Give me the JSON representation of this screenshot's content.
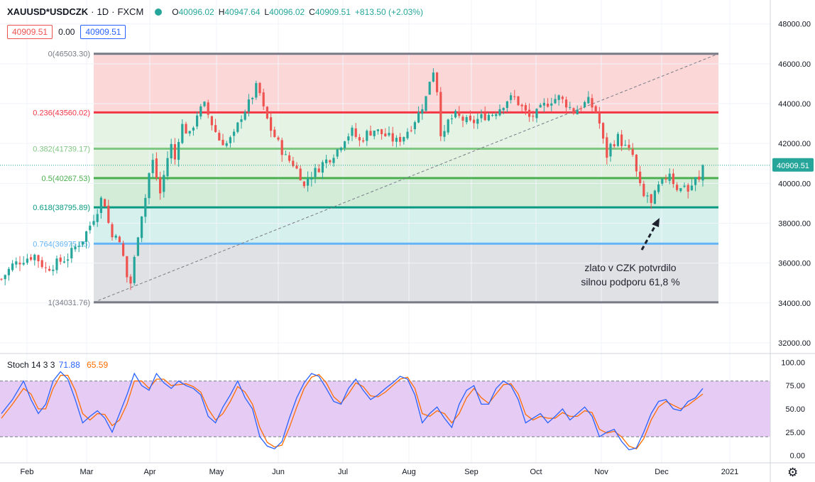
{
  "header": {
    "symbol": "XAUUSD*USDCZK",
    "interval": "1D",
    "source": "FXCM",
    "open_label": "O",
    "open": "40096.02",
    "high_label": "H",
    "high": "40947.64",
    "low_label": "L",
    "low": "40096.02",
    "close_label": "C",
    "close": "40909.51",
    "change": "+813.50 (+2.03%)"
  },
  "trade": {
    "sell": "40909.51",
    "spread": "0.00",
    "buy": "40909.51"
  },
  "last_price": "40909.51",
  "colors": {
    "up": "#26a69a",
    "down": "#ef5350",
    "stoch_k": "#2962ff",
    "stoch_d": "#ff6d00",
    "fib_0_236": "#f23645",
    "fib_0_382": "#81c784",
    "fib_0_5": "#4caf50",
    "fib_0_618": "#089981",
    "fib_0_764": "#64b5f6",
    "fib_1": "#787b86"
  },
  "annotation": {
    "line1": "zlato v CZK potvrdilo",
    "line2": "silnou podporu 61,8 %"
  },
  "stoch": {
    "label": "Stoch",
    "params": "14 3 3",
    "k_value": "71.88",
    "d_value": "65.59"
  },
  "chart_data": {
    "type": "candlestick",
    "price_axis": {
      "range": [
        31500,
        49200
      ],
      "ticks": [
        "48000.00",
        "46000.00",
        "44000.00",
        "42000.00",
        "40000.00",
        "38000.00",
        "36000.00",
        "34000.00",
        "32000.00"
      ]
    },
    "time_axis": {
      "labels": [
        "Feb",
        "Mar",
        "Apr",
        "May",
        "Jun",
        "Jul",
        "Aug",
        "Sep",
        "Oct",
        "Nov",
        "Dec",
        "2021"
      ]
    },
    "fib_levels": [
      {
        "ratio": "0",
        "price": 46503.3,
        "label": "0(46503.30)"
      },
      {
        "ratio": "0.236",
        "price": 43560.02,
        "label": "0.236(43560.02)"
      },
      {
        "ratio": "0.382",
        "price": 41739.17,
        "label": "0.382(41739.17)"
      },
      {
        "ratio": "0.5",
        "price": 40267.53,
        "label": "0.5(40267.53)"
      },
      {
        "ratio": "0.618",
        "price": 38795.89,
        "label": "0.618(38795.89)"
      },
      {
        "ratio": "0.764",
        "price": 36975.05,
        "label": "0.764(36975.05)"
      },
      {
        "ratio": "1",
        "price": 34031.76,
        "label": "1(34031.76)"
      }
    ],
    "price_path": [
      [
        0,
        35200
      ],
      [
        3,
        35900
      ],
      [
        6,
        36200
      ],
      [
        9,
        36400
      ],
      [
        12,
        35700
      ],
      [
        15,
        36000
      ],
      [
        18,
        36300
      ],
      [
        20,
        36800
      ],
      [
        22,
        37200
      ],
      [
        24,
        37900
      ],
      [
        26,
        38700
      ],
      [
        27,
        39200
      ],
      [
        28,
        39000
      ],
      [
        29,
        38000
      ],
      [
        30,
        37300
      ],
      [
        31,
        37600
      ],
      [
        32,
        36900
      ],
      [
        33,
        36300
      ],
      [
        34,
        35300
      ],
      [
        35,
        35000
      ],
      [
        36,
        36200
      ],
      [
        37,
        37500
      ],
      [
        38,
        38500
      ],
      [
        39,
        39300
      ],
      [
        40,
        40500
      ],
      [
        41,
        41100
      ],
      [
        42,
        40300
      ],
      [
        43,
        39500
      ],
      [
        44,
        40400
      ],
      [
        45,
        41300
      ],
      [
        46,
        41900
      ],
      [
        47,
        41200
      ],
      [
        48,
        42300
      ],
      [
        49,
        42900
      ],
      [
        51,
        42400
      ],
      [
        53,
        43500
      ],
      [
        55,
        43900
      ],
      [
        57,
        43000
      ],
      [
        59,
        42200
      ],
      [
        61,
        42000
      ],
      [
        63,
        42400
      ],
      [
        65,
        43400
      ],
      [
        67,
        44000
      ],
      [
        69,
        44800
      ],
      [
        70,
        44500
      ],
      [
        71,
        43700
      ],
      [
        72,
        43200
      ],
      [
        73,
        42700
      ],
      [
        75,
        42000
      ],
      [
        77,
        41300
      ],
      [
        79,
        41000
      ],
      [
        81,
        40400
      ],
      [
        82,
        39800
      ],
      [
        83,
        40300
      ],
      [
        85,
        40600
      ],
      [
        87,
        41000
      ],
      [
        89,
        41300
      ],
      [
        91,
        41700
      ],
      [
        93,
        42300
      ],
      [
        95,
        42600
      ],
      [
        97,
        42100
      ],
      [
        99,
        42500
      ],
      [
        101,
        42700
      ],
      [
        103,
        42500
      ],
      [
        105,
        42300
      ],
      [
        107,
        42100
      ],
      [
        109,
        42400
      ],
      [
        111,
        42900
      ],
      [
        113,
        43500
      ],
      [
        115,
        44300
      ],
      [
        116,
        45200
      ],
      [
        117,
        45700
      ],
      [
        118,
        44700
      ],
      [
        119,
        42600
      ],
      [
        120,
        42400
      ],
      [
        121,
        43100
      ],
      [
        123,
        43400
      ],
      [
        125,
        43200
      ],
      [
        127,
        43000
      ],
      [
        129,
        43200
      ],
      [
        131,
        43400
      ],
      [
        133,
        43500
      ],
      [
        135,
        43800
      ],
      [
        137,
        44200
      ],
      [
        139,
        44300
      ],
      [
        141,
        43800
      ],
      [
        143,
        43300
      ],
      [
        145,
        43500
      ],
      [
        147,
        43900
      ],
      [
        149,
        44200
      ],
      [
        151,
        44300
      ],
      [
        153,
        44000
      ],
      [
        155,
        43600
      ],
      [
        157,
        43900
      ],
      [
        159,
        44100
      ],
      [
        161,
        43600
      ],
      [
        162,
        43000
      ],
      [
        163,
        42100
      ],
      [
        164,
        41400
      ],
      [
        165,
        41900
      ],
      [
        167,
        42300
      ],
      [
        169,
        41800
      ],
      [
        171,
        41400
      ],
      [
        172,
        40500
      ],
      [
        173,
        39800
      ],
      [
        174,
        39300
      ],
      [
        175,
        39400
      ],
      [
        176,
        38900
      ],
      [
        177,
        39400
      ],
      [
        178,
        39800
      ],
      [
        179,
        40000
      ],
      [
        180,
        40300
      ],
      [
        181,
        40600
      ],
      [
        182,
        40100
      ],
      [
        183,
        39800
      ],
      [
        184,
        39700
      ],
      [
        185,
        40000
      ],
      [
        186,
        39600
      ],
      [
        187,
        39900
      ],
      [
        188,
        40200
      ],
      [
        189,
        40100
      ],
      [
        190,
        40909
      ]
    ],
    "stoch_k": [
      [
        0,
        45
      ],
      [
        3,
        60
      ],
      [
        6,
        80
      ],
      [
        8,
        60
      ],
      [
        10,
        45
      ],
      [
        12,
        55
      ],
      [
        14,
        80
      ],
      [
        16,
        90
      ],
      [
        18,
        82
      ],
      [
        20,
        60
      ],
      [
        22,
        35
      ],
      [
        24,
        42
      ],
      [
        26,
        48
      ],
      [
        28,
        40
      ],
      [
        30,
        25
      ],
      [
        32,
        45
      ],
      [
        34,
        65
      ],
      [
        36,
        88
      ],
      [
        38,
        75
      ],
      [
        40,
        70
      ],
      [
        42,
        88
      ],
      [
        44,
        78
      ],
      [
        46,
        72
      ],
      [
        48,
        80
      ],
      [
        50,
        75
      ],
      [
        52,
        72
      ],
      [
        54,
        65
      ],
      [
        56,
        42
      ],
      [
        58,
        35
      ],
      [
        60,
        52
      ],
      [
        62,
        65
      ],
      [
        64,
        80
      ],
      [
        66,
        62
      ],
      [
        68,
        50
      ],
      [
        70,
        20
      ],
      [
        72,
        10
      ],
      [
        74,
        7
      ],
      [
        76,
        15
      ],
      [
        78,
        40
      ],
      [
        80,
        62
      ],
      [
        82,
        78
      ],
      [
        84,
        88
      ],
      [
        86,
        85
      ],
      [
        88,
        72
      ],
      [
        90,
        58
      ],
      [
        92,
        55
      ],
      [
        94,
        72
      ],
      [
        96,
        82
      ],
      [
        98,
        70
      ],
      [
        100,
        60
      ],
      [
        102,
        65
      ],
      [
        104,
        72
      ],
      [
        106,
        78
      ],
      [
        108,
        85
      ],
      [
        110,
        82
      ],
      [
        112,
        65
      ],
      [
        114,
        35
      ],
      [
        116,
        45
      ],
      [
        118,
        52
      ],
      [
        120,
        40
      ],
      [
        122,
        30
      ],
      [
        124,
        55
      ],
      [
        126,
        70
      ],
      [
        128,
        75
      ],
      [
        130,
        55
      ],
      [
        132,
        55
      ],
      [
        134,
        72
      ],
      [
        136,
        80
      ],
      [
        138,
        75
      ],
      [
        140,
        60
      ],
      [
        142,
        35
      ],
      [
        144,
        40
      ],
      [
        146,
        45
      ],
      [
        148,
        35
      ],
      [
        150,
        42
      ],
      [
        152,
        50
      ],
      [
        154,
        38
      ],
      [
        156,
        45
      ],
      [
        158,
        52
      ],
      [
        160,
        42
      ],
      [
        162,
        20
      ],
      [
        164,
        25
      ],
      [
        166,
        28
      ],
      [
        168,
        15
      ],
      [
        170,
        6
      ],
      [
        172,
        8
      ],
      [
        174,
        25
      ],
      [
        176,
        45
      ],
      [
        178,
        58
      ],
      [
        180,
        60
      ],
      [
        182,
        50
      ],
      [
        184,
        48
      ],
      [
        186,
        58
      ],
      [
        188,
        62
      ],
      [
        190,
        72
      ]
    ],
    "stoch_d": [
      [
        0,
        40
      ],
      [
        3,
        55
      ],
      [
        6,
        72
      ],
      [
        8,
        66
      ],
      [
        10,
        50
      ],
      [
        12,
        50
      ],
      [
        14,
        72
      ],
      [
        16,
        86
      ],
      [
        18,
        86
      ],
      [
        20,
        70
      ],
      [
        22,
        45
      ],
      [
        24,
        38
      ],
      [
        26,
        45
      ],
      [
        28,
        44
      ],
      [
        30,
        32
      ],
      [
        32,
        38
      ],
      [
        34,
        55
      ],
      [
        36,
        80
      ],
      [
        38,
        80
      ],
      [
        40,
        72
      ],
      [
        42,
        82
      ],
      [
        44,
        82
      ],
      [
        46,
        75
      ],
      [
        48,
        76
      ],
      [
        50,
        77
      ],
      [
        52,
        74
      ],
      [
        54,
        68
      ],
      [
        56,
        50
      ],
      [
        58,
        38
      ],
      [
        60,
        45
      ],
      [
        62,
        58
      ],
      [
        64,
        74
      ],
      [
        66,
        68
      ],
      [
        68,
        55
      ],
      [
        70,
        30
      ],
      [
        72,
        14
      ],
      [
        74,
        9
      ],
      [
        76,
        11
      ],
      [
        78,
        30
      ],
      [
        80,
        52
      ],
      [
        82,
        72
      ],
      [
        84,
        84
      ],
      [
        86,
        87
      ],
      [
        88,
        78
      ],
      [
        90,
        63
      ],
      [
        92,
        56
      ],
      [
        94,
        66
      ],
      [
        96,
        78
      ],
      [
        98,
        74
      ],
      [
        100,
        64
      ],
      [
        102,
        63
      ],
      [
        104,
        68
      ],
      [
        106,
        75
      ],
      [
        108,
        82
      ],
      [
        110,
        84
      ],
      [
        112,
        72
      ],
      [
        114,
        45
      ],
      [
        116,
        42
      ],
      [
        118,
        48
      ],
      [
        120,
        45
      ],
      [
        122,
        35
      ],
      [
        124,
        45
      ],
      [
        126,
        62
      ],
      [
        128,
        72
      ],
      [
        130,
        62
      ],
      [
        132,
        56
      ],
      [
        134,
        66
      ],
      [
        136,
        76
      ],
      [
        138,
        77
      ],
      [
        140,
        66
      ],
      [
        142,
        44
      ],
      [
        144,
        38
      ],
      [
        146,
        42
      ],
      [
        148,
        40
      ],
      [
        150,
        40
      ],
      [
        152,
        46
      ],
      [
        154,
        42
      ],
      [
        156,
        42
      ],
      [
        158,
        48
      ],
      [
        160,
        46
      ],
      [
        162,
        28
      ],
      [
        164,
        24
      ],
      [
        166,
        26
      ],
      [
        168,
        20
      ],
      [
        170,
        10
      ],
      [
        172,
        7
      ],
      [
        174,
        18
      ],
      [
        176,
        38
      ],
      [
        178,
        52
      ],
      [
        180,
        58
      ],
      [
        182,
        54
      ],
      [
        184,
        50
      ],
      [
        186,
        54
      ],
      [
        188,
        60
      ],
      [
        190,
        66
      ]
    ],
    "stoch_axis": {
      "range": [
        -8,
        108
      ],
      "ticks": [
        "100.00",
        "75.00",
        "50.00",
        "25.00",
        "0.00"
      ],
      "bands": [
        20,
        80
      ]
    }
  }
}
